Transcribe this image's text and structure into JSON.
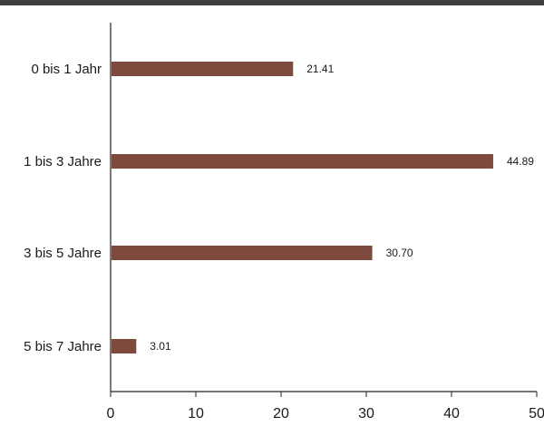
{
  "chart_data": {
    "type": "bar",
    "orientation": "horizontal",
    "categories": [
      "0 bis 1 Jahr",
      "1 bis 3 Jahre",
      "3 bis 5 Jahre",
      "5 bis 7 Jahre"
    ],
    "values": [
      21.41,
      44.89,
      30.7,
      3.01
    ],
    "data_labels": [
      "21.41",
      "44.89",
      "30.70",
      "3.01"
    ],
    "xlim": [
      0,
      50
    ],
    "x_ticks": [
      "0",
      "10",
      "20",
      "30",
      "40",
      "50"
    ],
    "grid": false,
    "bar_color": "#7f4a3e"
  }
}
